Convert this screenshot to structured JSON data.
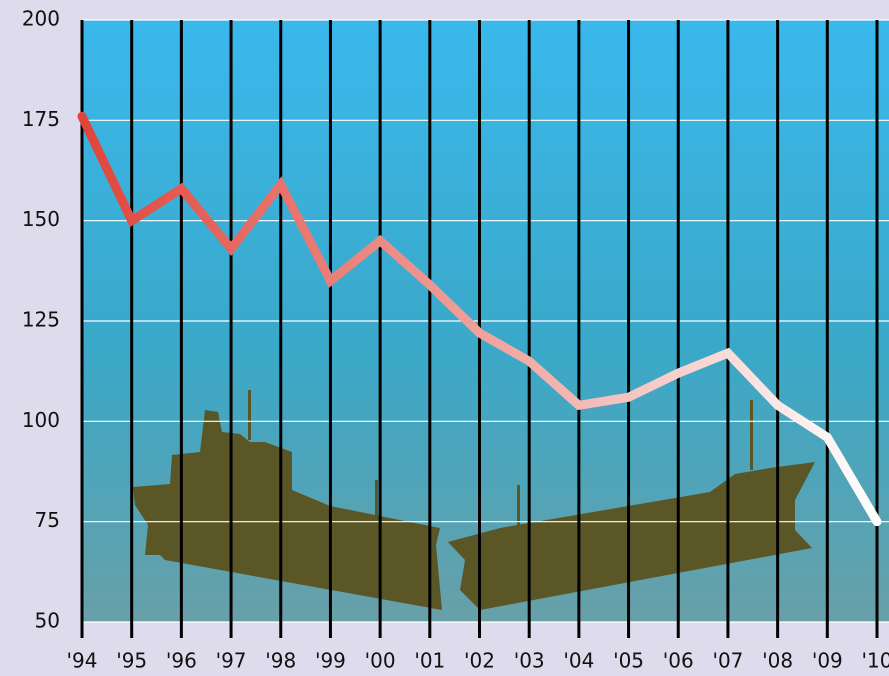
{
  "chart_data": {
    "type": "line",
    "categories": [
      "'94",
      "'95",
      "'96",
      "'97",
      "'98",
      "'99",
      "'00",
      "'01",
      "'02",
      "'03",
      "'04",
      "'05",
      "'06",
      "'07",
      "'08",
      "'09",
      "'10"
    ],
    "series": [
      {
        "values": [
          176,
          150,
          158,
          143,
          159,
          135,
          145,
          134,
          122,
          115,
          104,
          106,
          112,
          117,
          104,
          96,
          75
        ],
        "colors": [
          "#e0443a",
          "#ffffff"
        ]
      }
    ],
    "ylim": [
      50,
      200
    ],
    "yticks": [
      50,
      75,
      100,
      125,
      150,
      175,
      200
    ],
    "grid": true
  }
}
